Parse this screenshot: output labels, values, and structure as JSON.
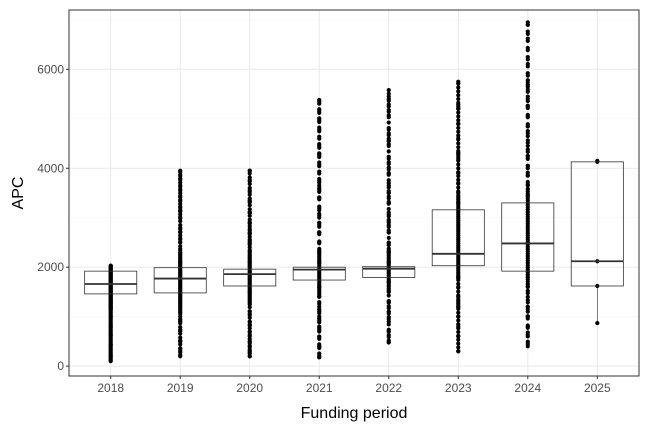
{
  "chart_data": {
    "type": "boxplot",
    "title": "",
    "xlabel": "Funding period",
    "ylabel": "APC",
    "ylim": [
      -200,
      7200
    ],
    "y_ticks": [
      0,
      2000,
      4000,
      6000
    ],
    "y_tick_labels": [
      "0",
      "2000",
      "4000",
      "6000"
    ],
    "grid": true,
    "theme": "bw",
    "colors": {
      "box_outline": "#333333",
      "points": "#000000",
      "grid_major": "#ebebeb",
      "grid_minor": "#f5f5f5",
      "panel_border": "#333333"
    },
    "categories": [
      "2018",
      "2019",
      "2020",
      "2021",
      "2022",
      "2023",
      "2024",
      "2025"
    ],
    "boxes": [
      {
        "category": "2018",
        "q1": 1460,
        "median": 1660,
        "q3": 1920,
        "whisker_low": 1460,
        "whisker_high": 1920,
        "points_min": 100,
        "points_max": 2030,
        "outliers": [
          100,
          200,
          430,
          620,
          800,
          1000,
          1150,
          1300,
          2030
        ]
      },
      {
        "category": "2019",
        "q1": 1480,
        "median": 1770,
        "q3": 1990,
        "whisker_low": 1480,
        "whisker_high": 1990,
        "points_min": 200,
        "points_max": 3950,
        "outliers": [
          200,
          350,
          500,
          700,
          900,
          1100,
          2100,
          2300,
          2500,
          2700,
          3150,
          3950
        ]
      },
      {
        "category": "2020",
        "q1": 1620,
        "median": 1860,
        "q3": 1960,
        "whisker_low": 1620,
        "whisker_high": 1960,
        "points_min": 200,
        "points_max": 3950,
        "outliers": [
          200,
          300,
          500,
          700,
          900,
          1100,
          1300,
          1500,
          2100,
          2300,
          2500,
          2700,
          2900,
          3100,
          3350,
          3950
        ]
      },
      {
        "category": "2021",
        "q1": 1740,
        "median": 1950,
        "q3": 2000,
        "whisker_low": 1740,
        "whisker_high": 2000,
        "points_min": 180,
        "points_max": 5380,
        "outliers": [
          180,
          400,
          600,
          800,
          1000,
          1200,
          1400,
          1600,
          2100,
          2300,
          2500,
          2700,
          2900,
          3150,
          3400,
          3650,
          4280,
          5380
        ]
      },
      {
        "category": "2022",
        "q1": 1790,
        "median": 1970,
        "q3": 2010,
        "whisker_low": 1790,
        "whisker_high": 2010,
        "points_min": 480,
        "points_max": 5580,
        "outliers": [
          480,
          700,
          900,
          1100,
          1300,
          1500,
          1700,
          2100,
          2300,
          2500,
          2700,
          2900,
          3100,
          3300,
          3500,
          3700,
          3900,
          4550,
          5450,
          5580
        ]
      },
      {
        "category": "2023",
        "q1": 2030,
        "median": 2270,
        "q3": 3160,
        "whisker_low": 2030,
        "whisker_high": 3160,
        "points_min": 300,
        "points_max": 5750,
        "outliers": [
          300,
          600,
          800,
          1000,
          1200,
          1400,
          1600,
          1800,
          3300,
          3500,
          3700,
          3900,
          4300,
          4600,
          4900,
          5200,
          5750
        ]
      },
      {
        "category": "2024",
        "q1": 1920,
        "median": 2480,
        "q3": 3300,
        "whisker_low": 1920,
        "whisker_high": 3300,
        "points_min": 400,
        "points_max": 6950,
        "outliers": [
          400,
          600,
          800,
          1000,
          1200,
          1400,
          1600,
          1800,
          3450,
          3650,
          3850,
          4050,
          4250,
          4450,
          4650,
          4850,
          5050,
          5250,
          5450,
          5650,
          5780,
          6900,
          6950
        ]
      },
      {
        "category": "2025",
        "q1": 1620,
        "median": 2120,
        "q3": 4130,
        "whisker_low": 870,
        "whisker_high": 4150,
        "points_min": 870,
        "points_max": 4150,
        "points": [
          870,
          1620,
          2120,
          4130,
          4150
        ],
        "outliers": []
      }
    ]
  }
}
